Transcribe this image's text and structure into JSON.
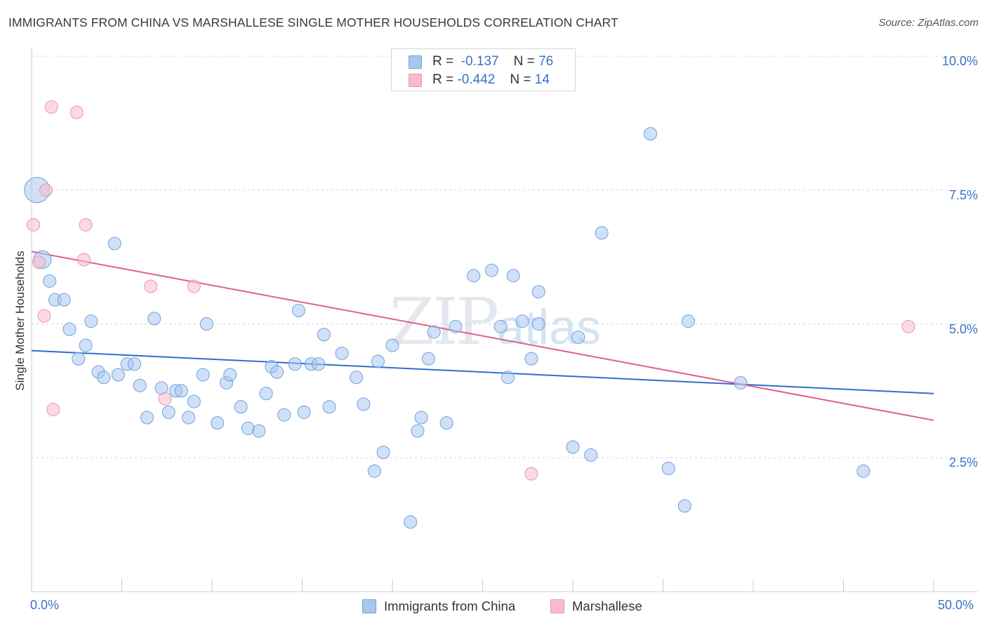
{
  "title": "IMMIGRANTS FROM CHINA VS MARSHALLESE SINGLE MOTHER HOUSEHOLDS CORRELATION CHART",
  "source": "Source: ZipAtlas.com",
  "watermark": {
    "part1": "ZIP",
    "part2": "atlas"
  },
  "legend": {
    "rows": [
      {
        "r_label": "R =",
        "r_value": "-0.137",
        "n_label": "N =",
        "n_value": "76",
        "color": "#a9c8f0",
        "border": "#6f9fdd"
      },
      {
        "r_label": "R =",
        "r_value": "-0.442",
        "n_label": "N =",
        "n_value": "14",
        "color": "#f8bccd",
        "border": "#e893ad"
      }
    ]
  },
  "bottom_legend": [
    {
      "label": "Immigrants from China",
      "color": "#a9c8f0",
      "border": "#6f9fdd"
    },
    {
      "label": "Marshallese",
      "color": "#f8bccd",
      "border": "#e893ad"
    }
  ],
  "chart_data": {
    "type": "scatter",
    "xlabel": "",
    "ylabel": "Single Mother Households",
    "xlim": [
      0,
      50
    ],
    "ylim": [
      0,
      10
    ],
    "x_tick_labels": [
      {
        "value": 0,
        "label": "0.0%"
      },
      {
        "value": 50,
        "label": "50.0%"
      }
    ],
    "y_tick_labels": [
      {
        "value": 2.5,
        "label": "2.5%"
      },
      {
        "value": 5.0,
        "label": "5.0%"
      },
      {
        "value": 7.5,
        "label": "7.5%"
      },
      {
        "value": 10.0,
        "label": "10.0%"
      }
    ],
    "grid": "horizontal dashed",
    "series": [
      {
        "name": "Immigrants from China",
        "color": "#a9c8f0",
        "stroke": "#6f9fdd",
        "line_color": "#2f6fcd",
        "trend": {
          "x": [
            0,
            50
          ],
          "y": [
            4.5,
            3.7
          ]
        },
        "points": [
          [
            0.3,
            7.5,
            2.0
          ],
          [
            0.6,
            6.2,
            1.4
          ],
          [
            1.0,
            5.8,
            1.0
          ],
          [
            1.3,
            5.45,
            1.0
          ],
          [
            1.8,
            5.45,
            1.0
          ],
          [
            2.1,
            4.9,
            1.0
          ],
          [
            2.6,
            4.35,
            1.0
          ],
          [
            3.0,
            4.6,
            1.0
          ],
          [
            3.3,
            5.05,
            1.0
          ],
          [
            3.7,
            4.1,
            1.0
          ],
          [
            4.0,
            4.0,
            1.0
          ],
          [
            4.8,
            4.05,
            1.0
          ],
          [
            4.6,
            6.5,
            1.0
          ],
          [
            5.3,
            4.25,
            1.0
          ],
          [
            5.7,
            4.25,
            1.0
          ],
          [
            6.0,
            3.85,
            1.0
          ],
          [
            6.4,
            3.25,
            1.0
          ],
          [
            6.8,
            5.1,
            1.0
          ],
          [
            7.2,
            3.8,
            1.0
          ],
          [
            7.6,
            3.35,
            1.0
          ],
          [
            8.0,
            3.75,
            1.0
          ],
          [
            8.3,
            3.75,
            1.0
          ],
          [
            8.7,
            3.25,
            1.0
          ],
          [
            9.0,
            3.55,
            1.0
          ],
          [
            9.5,
            4.05,
            1.0
          ],
          [
            9.7,
            5.0,
            1.0
          ],
          [
            10.3,
            3.15,
            1.0
          ],
          [
            10.8,
            3.9,
            1.0
          ],
          [
            11.0,
            4.05,
            1.0
          ],
          [
            11.6,
            3.45,
            1.0
          ],
          [
            12.0,
            3.05,
            1.0
          ],
          [
            12.6,
            3.0,
            1.0
          ],
          [
            13.0,
            3.7,
            1.0
          ],
          [
            13.3,
            4.2,
            1.0
          ],
          [
            13.6,
            4.1,
            1.0
          ],
          [
            14.0,
            3.3,
            1.0
          ],
          [
            14.6,
            4.25,
            1.0
          ],
          [
            14.8,
            5.25,
            1.0
          ],
          [
            15.1,
            3.35,
            1.0
          ],
          [
            15.5,
            4.25,
            1.0
          ],
          [
            15.9,
            4.25,
            1.0
          ],
          [
            16.2,
            4.8,
            1.0
          ],
          [
            16.5,
            3.45,
            1.0
          ],
          [
            17.2,
            4.45,
            1.0
          ],
          [
            18.0,
            4.0,
            1.0
          ],
          [
            18.4,
            3.5,
            1.0
          ],
          [
            19.0,
            2.25,
            1.0
          ],
          [
            19.2,
            4.3,
            1.0
          ],
          [
            19.5,
            2.6,
            1.0
          ],
          [
            20.0,
            4.6,
            1.0
          ],
          [
            21.0,
            1.3,
            1.0
          ],
          [
            21.4,
            3.0,
            1.0
          ],
          [
            21.6,
            3.25,
            1.0
          ],
          [
            22.0,
            4.35,
            1.0
          ],
          [
            22.3,
            4.85,
            1.0
          ],
          [
            23.0,
            3.15,
            1.0
          ],
          [
            23.5,
            4.95,
            1.0
          ],
          [
            24.5,
            5.9,
            1.0
          ],
          [
            25.5,
            6.0,
            1.0
          ],
          [
            26.0,
            4.95,
            1.0
          ],
          [
            26.4,
            4.0,
            1.0
          ],
          [
            26.7,
            5.9,
            1.0
          ],
          [
            27.2,
            5.05,
            1.0
          ],
          [
            28.1,
            5.6,
            1.0
          ],
          [
            27.7,
            4.35,
            1.0
          ],
          [
            28.1,
            5.0,
            1.0
          ],
          [
            30.0,
            2.7,
            1.0
          ],
          [
            30.3,
            4.75,
            1.0
          ],
          [
            31.0,
            2.55,
            1.0
          ],
          [
            31.6,
            6.7,
            1.0
          ],
          [
            34.3,
            8.55,
            1.0
          ],
          [
            35.3,
            2.3,
            1.0
          ],
          [
            36.2,
            1.6,
            1.0
          ],
          [
            36.4,
            5.05,
            1.0
          ],
          [
            39.3,
            3.9,
            1.0
          ],
          [
            46.1,
            2.25,
            1.0
          ]
        ]
      },
      {
        "name": "Marshallese",
        "color": "#f8bccd",
        "stroke": "#e893ad",
        "line_color": "#e0608c",
        "trend": {
          "x": [
            0,
            50
          ],
          "y": [
            6.35,
            3.2
          ]
        },
        "points": [
          [
            0.1,
            6.85,
            1.0
          ],
          [
            0.4,
            6.15,
            1.0
          ],
          [
            0.8,
            7.5,
            1.0
          ],
          [
            0.7,
            5.15,
            1.0
          ],
          [
            1.1,
            9.05,
            1.0
          ],
          [
            1.2,
            3.4,
            1.0
          ],
          [
            2.5,
            8.95,
            1.0
          ],
          [
            2.9,
            6.2,
            1.0
          ],
          [
            3.0,
            6.85,
            1.0
          ],
          [
            6.6,
            5.7,
            1.0
          ],
          [
            7.4,
            3.6,
            1.0
          ],
          [
            9.0,
            5.7,
            1.0
          ],
          [
            27.7,
            2.2,
            1.0
          ],
          [
            48.6,
            4.95,
            1.0
          ]
        ]
      }
    ]
  }
}
